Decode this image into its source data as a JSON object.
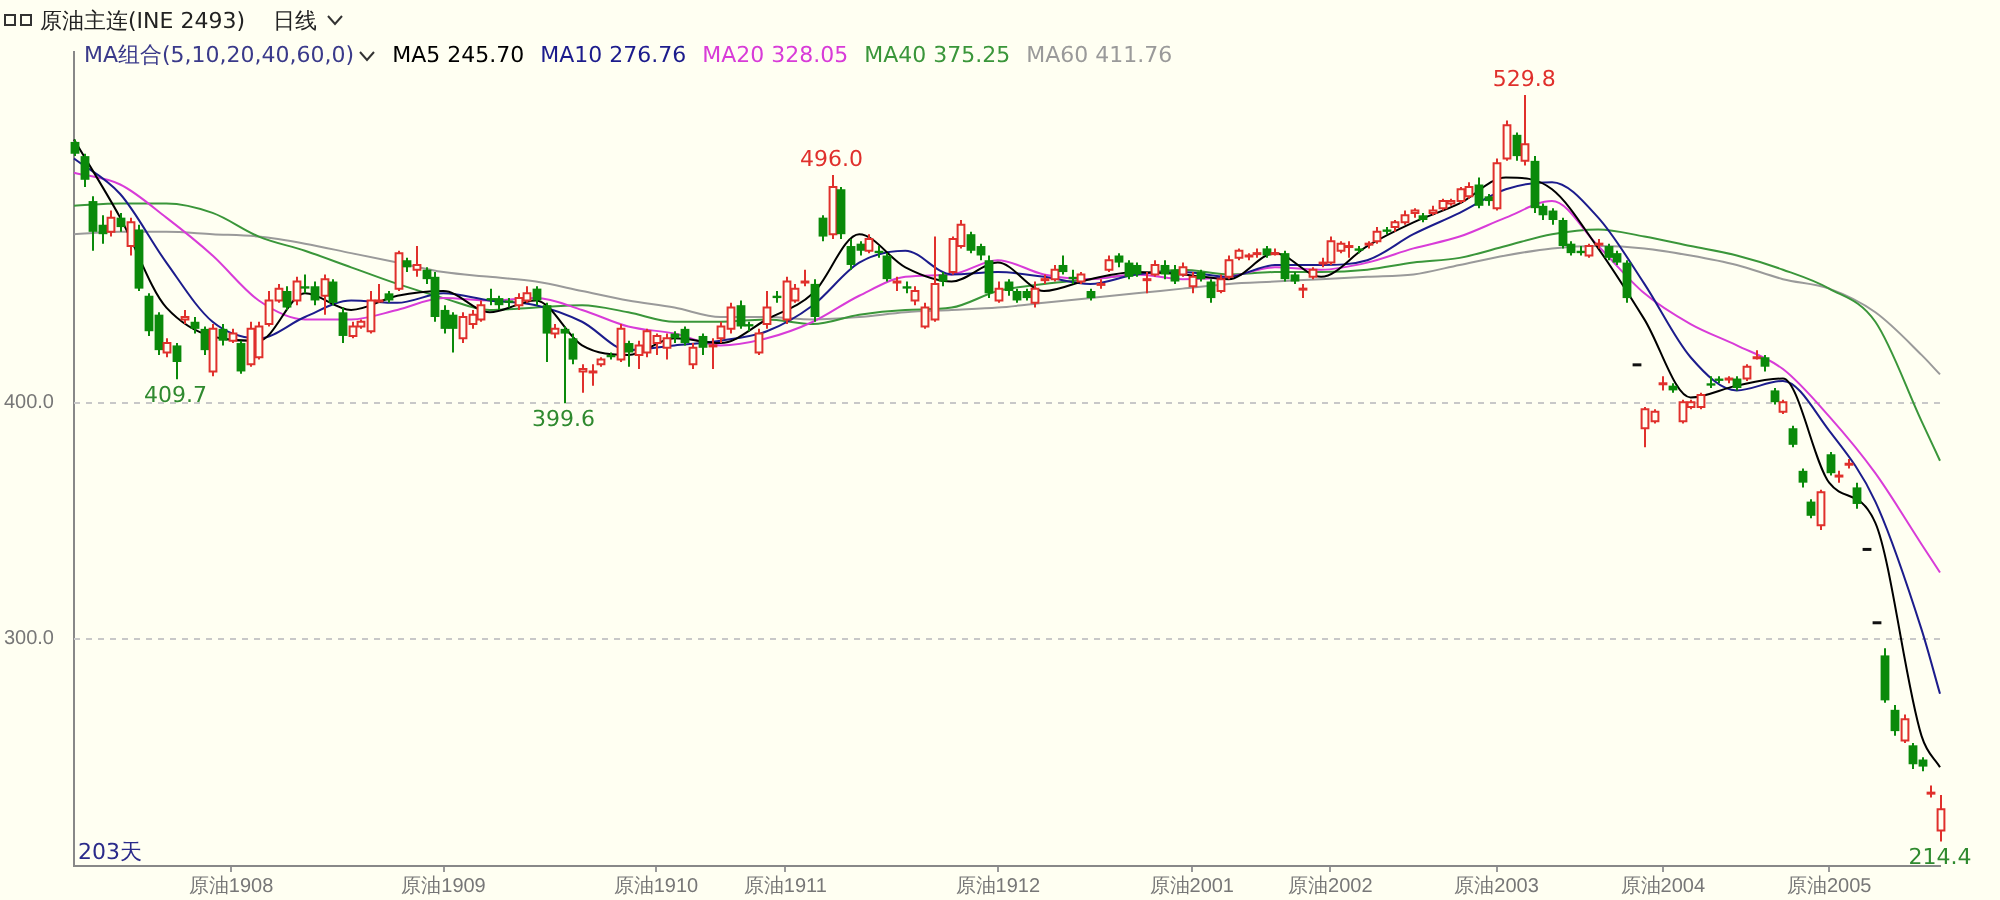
{
  "chart_data": {
    "type": "candlestick",
    "title": "原油主连(INE 2493)",
    "subtitle": "日线",
    "legend_title": "MA组合(5,10,20,40,60,0)",
    "legend": "top left",
    "grid": "y",
    "categories": [
      null,
      null,
      null,
      null,
      null,
      null,
      null,
      null,
      null,
      null,
      null,
      null,
      null,
      null,
      null,
      null,
      null,
      "原油1908",
      null,
      null,
      null,
      null,
      null,
      null,
      null,
      null,
      null,
      null,
      null,
      null,
      null,
      null,
      null,
      null,
      null,
      null,
      null,
      null,
      null,
      null,
      "原油1909",
      null,
      null,
      null,
      null,
      null,
      null,
      null,
      null,
      null,
      null,
      null,
      null,
      null,
      null,
      null,
      null,
      null,
      null,
      null,
      null,
      null,
      null,
      "原油1910",
      null,
      null,
      null,
      null,
      null,
      null,
      null,
      null,
      null,
      null,
      null,
      null,
      null,
      "原油1911",
      null,
      null,
      null,
      null,
      null,
      null,
      null,
      null,
      null,
      null,
      null,
      null,
      null,
      null,
      null,
      null,
      null,
      null,
      null,
      null,
      null,
      null,
      "原油1912",
      null,
      null,
      null,
      null,
      null,
      null,
      null,
      null,
      null,
      null,
      null,
      null,
      null,
      null,
      null,
      null,
      null,
      null,
      null,
      null,
      "原油2001",
      null,
      null,
      null,
      null,
      null,
      null,
      null,
      null,
      null,
      null,
      null,
      null,
      null,
      null,
      "原油2002",
      null,
      null,
      null,
      null,
      null,
      null,
      null,
      null,
      null,
      null,
      null,
      null,
      null,
      null,
      null,
      null,
      null,
      "原油2003",
      null,
      null,
      null,
      null,
      null,
      null,
      null,
      null,
      null,
      null,
      null,
      null,
      null,
      null,
      null,
      null,
      null,
      "原油2004",
      null,
      null,
      null,
      null,
      null,
      null,
      null,
      null,
      null,
      null,
      null,
      null,
      null,
      null,
      null,
      null,
      null,
      "原油2005",
      null,
      null,
      null,
      null,
      null,
      null,
      null,
      null,
      null,
      null,
      null,
      null
    ],
    "ylim": [
      204,
      548
    ],
    "yticks": [
      {
        "value": 300,
        "label": "300.0"
      },
      {
        "value": 400,
        "label": "400.0"
      }
    ],
    "annotations": [
      "203天",
      {
        "text": "409.7",
        "y": 409.7
      },
      {
        "text": "399.6",
        "y": 399.6
      },
      {
        "text": "496.0",
        "y": 496
      },
      {
        "text": "529.8",
        "y": 529.8
      },
      {
        "text": "214.4",
        "y": 214.4
      }
    ],
    "ohlc": [
      [
        510,
        511,
        504,
        505
      ],
      [
        504,
        505,
        491,
        494
      ],
      [
        485,
        487,
        464,
        472
      ],
      [
        475,
        479,
        467,
        471
      ],
      [
        472,
        481,
        470,
        478
      ],
      [
        478,
        480,
        472,
        474
      ],
      [
        466,
        478,
        462,
        476
      ],
      [
        473,
        475,
        447,
        448
      ],
      [
        445,
        446,
        428,
        430
      ],
      [
        437,
        438,
        420,
        422
      ],
      [
        421,
        427,
        419,
        425
      ],
      [
        424,
        425,
        409.7,
        417
      ],
      [
        435,
        439,
        433,
        436
      ],
      [
        434,
        436,
        429,
        431
      ],
      [
        431,
        432,
        420,
        422
      ],
      [
        413,
        433,
        411,
        431
      ],
      [
        431,
        433,
        424,
        426
      ],
      [
        426,
        431,
        425,
        429
      ],
      [
        425,
        426,
        412,
        413
      ],
      [
        416,
        434,
        415,
        431
      ],
      [
        419,
        434,
        418,
        432
      ],
      [
        433,
        447,
        432,
        443
      ],
      [
        443,
        450,
        442,
        448
      ],
      [
        447,
        449,
        439,
        440
      ],
      [
        443,
        453,
        441,
        451
      ],
      [
        449,
        454,
        446,
        448
      ],
      [
        449,
        451,
        441,
        443
      ],
      [
        445,
        454,
        437,
        452
      ],
      [
        451,
        452,
        441,
        442
      ],
      [
        438,
        440,
        425,
        428
      ],
      [
        428,
        434,
        427,
        432
      ],
      [
        432,
        435,
        431,
        434
      ],
      [
        430,
        447,
        429,
        443
      ],
      [
        443,
        450,
        442,
        443
      ],
      [
        446,
        447,
        442,
        443
      ],
      [
        448,
        464,
        447,
        463
      ],
      [
        460,
        461,
        455,
        457
      ],
      [
        456,
        466,
        453,
        458
      ],
      [
        456,
        457,
        450,
        452
      ],
      [
        453,
        455,
        434,
        436
      ],
      [
        439,
        441,
        429,
        431
      ],
      [
        437,
        438,
        421,
        431
      ],
      [
        427,
        438,
        425,
        436
      ],
      [
        433,
        439,
        431,
        437
      ],
      [
        435,
        443,
        434,
        441
      ],
      [
        444,
        448,
        441,
        443
      ],
      [
        444,
        445,
        439,
        441
      ],
      [
        443,
        444,
        440,
        442
      ],
      [
        441,
        446,
        439,
        444
      ],
      [
        443,
        449,
        442,
        446
      ],
      [
        448,
        449,
        441,
        443
      ],
      [
        441,
        442,
        417,
        429
      ],
      [
        429,
        433,
        427,
        431
      ],
      [
        431,
        432,
        399.6,
        429
      ],
      [
        427,
        429,
        416,
        418
      ],
      [
        413,
        416,
        404,
        414
      ],
      [
        413,
        416,
        407,
        413
      ],
      [
        416,
        419,
        415,
        418
      ],
      [
        420,
        421,
        418,
        419
      ],
      [
        418,
        433,
        417,
        431
      ],
      [
        425,
        426,
        415,
        421
      ],
      [
        420,
        426,
        414,
        424
      ],
      [
        421,
        431,
        419,
        430
      ],
      [
        425,
        429,
        420,
        428
      ],
      [
        423,
        429,
        418,
        427
      ],
      [
        429,
        430,
        425,
        427
      ],
      [
        431,
        432,
        424,
        425
      ],
      [
        416,
        425,
        414,
        423
      ],
      [
        428,
        429,
        420,
        423
      ],
      [
        424,
        427,
        414,
        424
      ],
      [
        427,
        434,
        425,
        432
      ],
      [
        431,
        442,
        429,
        440
      ],
      [
        441,
        443,
        431,
        432
      ],
      [
        433,
        434,
        430,
        432
      ],
      [
        421,
        431,
        420,
        429
      ],
      [
        433,
        447,
        431,
        440
      ],
      [
        445,
        447,
        442,
        444
      ],
      [
        435,
        453,
        433,
        451
      ],
      [
        443,
        450,
        442,
        448
      ],
      [
        451,
        456,
        449,
        451
      ],
      [
        450,
        452,
        434,
        436
      ],
      [
        478,
        479,
        468,
        470
      ],
      [
        471,
        496,
        469,
        491
      ],
      [
        490,
        491,
        469,
        471
      ],
      [
        466,
        469,
        456,
        458
      ],
      [
        467,
        468,
        462,
        464
      ],
      [
        464,
        471,
        463,
        469
      ],
      [
        464,
        466,
        461,
        463
      ],
      [
        462,
        463,
        451,
        452
      ],
      [
        451,
        453,
        447,
        451
      ],
      [
        449,
        451,
        446,
        448
      ],
      [
        443,
        449,
        441,
        447
      ],
      [
        432,
        442,
        431,
        440
      ],
      [
        435,
        470,
        434,
        450
      ],
      [
        454,
        455,
        449,
        451
      ],
      [
        455,
        470,
        454,
        469
      ],
      [
        466,
        477,
        465,
        475
      ],
      [
        471,
        472,
        463,
        464
      ],
      [
        466,
        467,
        460,
        462
      ],
      [
        460,
        462,
        444,
        446
      ],
      [
        443,
        451,
        442,
        448
      ],
      [
        451,
        452,
        445,
        447
      ],
      [
        447,
        448,
        442,
        443
      ],
      [
        447,
        448,
        443,
        444
      ],
      [
        442,
        451,
        440,
        448
      ],
      [
        452,
        454,
        450,
        452
      ],
      [
        452,
        458,
        451,
        456
      ],
      [
        458,
        462,
        454,
        455
      ],
      [
        453,
        456,
        450,
        452
      ],
      [
        451,
        455,
        450,
        454
      ],
      [
        447,
        448,
        443,
        444
      ],
      [
        450,
        452,
        448,
        450
      ],
      [
        456,
        462,
        455,
        460
      ],
      [
        462,
        463,
        457,
        459
      ],
      [
        459,
        460,
        452,
        453
      ],
      [
        458,
        459,
        453,
        454
      ],
      [
        452,
        455,
        446,
        452
      ],
      [
        454,
        460,
        453,
        458
      ],
      [
        458,
        460,
        452,
        454
      ],
      [
        456,
        458,
        450,
        451
      ],
      [
        454,
        459,
        453,
        457
      ],
      [
        449,
        455,
        446,
        453
      ],
      [
        455,
        456,
        451,
        452
      ],
      [
        451,
        452,
        442,
        444
      ],
      [
        447,
        454,
        446,
        452
      ],
      [
        453,
        462,
        452,
        460
      ],
      [
        461,
        465,
        460,
        464
      ],
      [
        462,
        463,
        460,
        462
      ],
      [
        463,
        465,
        461,
        463
      ],
      [
        465,
        466,
        461,
        462
      ],
      [
        463,
        465,
        462,
        463
      ],
      [
        463,
        464,
        451,
        452
      ],
      [
        454,
        455,
        450,
        451
      ],
      [
        448,
        450,
        444,
        448
      ],
      [
        453,
        457,
        452,
        456
      ],
      [
        459,
        461,
        457,
        459
      ],
      [
        459,
        470,
        458,
        468
      ],
      [
        464,
        468,
        463,
        467
      ],
      [
        466,
        468,
        461,
        466
      ],
      [
        465,
        466,
        463,
        464
      ],
      [
        467,
        468,
        465,
        467
      ],
      [
        468,
        474,
        467,
        472
      ],
      [
        473,
        474,
        471,
        472
      ],
      [
        474,
        477,
        472,
        476
      ],
      [
        476,
        481,
        475,
        479
      ],
      [
        480,
        482,
        478,
        481
      ],
      [
        479,
        480,
        476,
        477
      ],
      [
        480,
        483,
        479,
        481
      ],
      [
        482,
        486,
        481,
        485
      ],
      [
        484,
        486,
        483,
        485
      ],
      [
        485,
        491,
        484,
        490
      ],
      [
        487,
        493,
        486,
        491
      ],
      [
        492,
        495,
        482,
        483
      ],
      [
        487,
        488,
        483,
        485
      ],
      [
        482,
        503,
        481,
        501
      ],
      [
        503,
        519,
        502,
        517
      ],
      [
        513,
        514,
        502,
        504
      ],
      [
        502,
        529.8,
        500,
        509
      ],
      [
        502,
        504,
        480,
        482
      ],
      [
        483,
        484,
        477,
        479
      ],
      [
        481,
        482,
        475,
        477
      ],
      [
        477,
        478,
        465,
        466
      ],
      [
        467,
        468,
        462,
        463
      ],
      [
        464,
        466,
        462,
        463
      ],
      [
        462,
        467,
        461,
        466
      ],
      [
        467,
        469,
        465,
        467
      ],
      [
        466,
        467,
        460,
        461
      ],
      [
        463,
        464,
        458,
        459
      ],
      [
        459,
        460,
        442,
        444
      ],
      [
        416,
        416,
        416,
        416
      ],
      [
        389,
        398,
        381,
        397
      ],
      [
        392,
        397,
        391,
        396
      ],
      [
        408,
        411,
        405,
        408
      ],
      [
        407,
        408,
        404,
        405
      ],
      [
        392,
        401,
        391,
        400
      ],
      [
        398,
        401,
        397,
        400
      ],
      [
        398,
        404,
        397,
        403
      ],
      [
        408,
        411,
        406,
        407
      ],
      [
        410,
        411,
        408,
        409
      ],
      [
        410,
        411,
        408,
        410
      ],
      [
        410,
        411,
        405,
        406
      ],
      [
        410,
        416,
        409,
        415
      ],
      [
        419,
        422,
        418,
        419
      ],
      [
        419,
        420,
        413,
        415
      ],
      [
        405,
        406,
        399,
        400
      ],
      [
        396,
        401,
        395,
        400
      ],
      [
        389,
        390,
        381,
        382
      ],
      [
        371,
        372,
        364,
        366
      ],
      [
        358,
        359,
        351,
        352
      ],
      [
        348,
        363,
        346,
        362
      ],
      [
        378,
        379,
        369,
        370
      ],
      [
        369,
        371,
        366,
        369
      ],
      [
        374,
        376,
        372,
        374
      ],
      [
        364,
        366,
        355,
        357
      ],
      [
        338,
        338,
        338,
        338
      ],
      [
        307,
        307,
        307,
        307
      ],
      [
        293,
        296,
        273,
        274
      ],
      [
        270,
        272,
        259,
        261
      ],
      [
        257,
        268,
        256,
        266
      ],
      [
        255,
        256,
        245,
        247
      ],
      [
        249,
        250,
        244,
        246
      ],
      [
        235,
        238,
        233,
        235
      ],
      [
        219,
        234,
        214.4,
        228
      ]
    ],
    "series": [
      {
        "name": "MA5 245.70",
        "type": "line",
        "color": "#000000",
        "values": [
          511,
          null,
          null,
          null,
          null,
          478,
          null,
          null,
          null,
          null,
          440,
          null,
          null,
          null,
          null,
          null,
          null,
          null,
          null,
          null,
          426,
          null,
          null,
          null,
          null,
          446,
          null,
          null,
          null,
          null,
          439,
          null,
          null,
          null,
          null,
          445,
          null,
          null,
          null,
          null,
          447,
          null,
          null,
          null,
          null,
          438,
          null,
          null,
          null,
          null,
          443,
          null,
          null,
          null,
          null,
          424,
          null,
          null,
          null,
          null,
          420,
          null,
          null,
          null,
          null,
          427,
          null,
          null,
          null,
          null,
          425,
          null,
          null,
          null,
          null,
          435,
          null,
          null,
          null,
          null,
          446,
          null,
          null,
          null,
          null,
          471,
          null,
          null,
          null,
          null,
          457,
          null,
          null,
          null,
          null,
          451,
          null,
          null,
          null,
          null,
          459,
          null,
          null,
          null,
          null,
          447,
          null,
          null,
          null,
          null,
          452,
          null,
          null,
          null,
          null,
          455,
          null,
          null,
          null,
          null,
          454,
          null,
          null,
          null,
          null,
          452,
          null,
          null,
          null,
          null,
          463,
          null,
          null,
          null,
          null,
          453,
          null,
          null,
          null,
          null,
          466,
          null,
          null,
          null,
          null,
          476,
          null,
          null,
          null,
          null,
          484,
          null,
          null,
          null,
          null,
          495,
          null,
          null,
          null,
          null,
          490,
          null,
          null,
          null,
          null,
          465,
          null,
          null,
          null,
          null,
          435,
          null,
          null,
          null,
          null,
          402,
          null,
          null,
          null,
          null,
          407,
          null,
          null,
          null,
          null,
          410,
          null,
          null,
          null,
          null,
          366,
          null,
          null,
          null,
          null,
          349,
          null,
          null,
          null,
          null,
          259,
          null,
          245.7
        ]
      },
      {
        "name": "MA10 276.76",
        "type": "line",
        "color": "#1c1c8c",
        "values": [
          503,
          null,
          null,
          null,
          null,
          488,
          null,
          null,
          null,
          null,
          459,
          null,
          null,
          null,
          null,
          434,
          null,
          null,
          null,
          null,
          427,
          null,
          null,
          null,
          null,
          436,
          null,
          null,
          null,
          null,
          443,
          null,
          null,
          null,
          null,
          442,
          null,
          null,
          null,
          null,
          446,
          null,
          null,
          null,
          null,
          443,
          null,
          null,
          null,
          null,
          441,
          null,
          null,
          null,
          null,
          434,
          null,
          null,
          null,
          null,
          422,
          null,
          null,
          null,
          null,
          424,
          null,
          null,
          null,
          null,
          426,
          null,
          null,
          null,
          null,
          430,
          null,
          null,
          null,
          null,
          441,
          null,
          null,
          null,
          null,
          459,
          null,
          null,
          null,
          null,
          464,
          null,
          null,
          null,
          null,
          454,
          null,
          null,
          null,
          null,
          455,
          null,
          null,
          null,
          null,
          453,
          null,
          null,
          null,
          null,
          450,
          null,
          null,
          null,
          null,
          454,
          null,
          null,
          null,
          null,
          455,
          null,
          null,
          null,
          null,
          453,
          null,
          null,
          null,
          null,
          458,
          null,
          null,
          null,
          null,
          458,
          null,
          null,
          null,
          null,
          460,
          null,
          null,
          null,
          null,
          471,
          null,
          null,
          null,
          null,
          480,
          null,
          null,
          null,
          null,
          490,
          null,
          null,
          null,
          null,
          493,
          null,
          null,
          null,
          null,
          478,
          null,
          null,
          null,
          null,
          450,
          null,
          null,
          null,
          null,
          419,
          null,
          null,
          null,
          null,
          405,
          null,
          null,
          null,
          null,
          409,
          null,
          null,
          null,
          null,
          388,
          null,
          null,
          null,
          null,
          358,
          null,
          null,
          null,
          null,
          304,
          null,
          276.76
        ]
      },
      {
        "name": "MA20 328.05",
        "type": "line",
        "color": "#d83cd8",
        "values": [
          497,
          null,
          null,
          null,
          null,
          492,
          null,
          null,
          null,
          null,
          478,
          null,
          null,
          null,
          null,
          462,
          null,
          null,
          null,
          null,
          443,
          null,
          null,
          null,
          null,
          435,
          null,
          null,
          null,
          null,
          435,
          null,
          null,
          null,
          null,
          439,
          null,
          null,
          null,
          null,
          444,
          null,
          null,
          null,
          null,
          443,
          null,
          null,
          null,
          null,
          444,
          null,
          null,
          null,
          null,
          439,
          null,
          null,
          null,
          null,
          432,
          null,
          null,
          null,
          null,
          429,
          null,
          null,
          null,
          null,
          424,
          null,
          null,
          null,
          null,
          427,
          null,
          null,
          null,
          null,
          434,
          null,
          null,
          null,
          null,
          445,
          null,
          null,
          null,
          null,
          453,
          null,
          null,
          null,
          null,
          454,
          null,
          null,
          null,
          null,
          460,
          null,
          null,
          null,
          null,
          454,
          null,
          null,
          null,
          null,
          452,
          null,
          null,
          null,
          null,
          454,
          null,
          null,
          null,
          null,
          452,
          null,
          null,
          null,
          null,
          453,
          null,
          null,
          null,
          null,
          457,
          null,
          null,
          null,
          null,
          456,
          null,
          null,
          null,
          null,
          459,
          null,
          null,
          null,
          null,
          465,
          null,
          null,
          null,
          null,
          470,
          null,
          null,
          null,
          null,
          478,
          null,
          null,
          null,
          null,
          485,
          null,
          null,
          null,
          null,
          466,
          null,
          null,
          null,
          null,
          446,
          null,
          null,
          null,
          null,
          433,
          null,
          null,
          null,
          null,
          424,
          null,
          null,
          null,
          null,
          414,
          null,
          null,
          null,
          null,
          394,
          null,
          null,
          null,
          null,
          370,
          null,
          null,
          null,
          null,
          340,
          null,
          328.05
        ]
      },
      {
        "name": "MA40 375.25",
        "type": "line",
        "color": "#3a963a",
        "values": [
          483,
          null,
          null,
          null,
          null,
          484,
          null,
          null,
          null,
          null,
          484,
          null,
          null,
          null,
          null,
          480,
          null,
          null,
          null,
          null,
          470,
          null,
          null,
          null,
          null,
          464,
          null,
          null,
          null,
          null,
          457,
          null,
          null,
          null,
          null,
          450,
          null,
          null,
          null,
          null,
          444,
          null,
          null,
          null,
          null,
          439,
          null,
          null,
          null,
          null,
          440,
          null,
          null,
          null,
          null,
          441,
          null,
          null,
          null,
          null,
          438,
          null,
          null,
          null,
          null,
          434,
          null,
          null,
          null,
          null,
          434,
          null,
          null,
          null,
          null,
          435,
          null,
          null,
          null,
          null,
          433,
          null,
          null,
          null,
          null,
          437,
          null,
          null,
          null,
          null,
          439,
          null,
          null,
          null,
          null,
          440,
          null,
          null,
          null,
          null,
          447,
          null,
          null,
          null,
          null,
          450,
          null,
          null,
          null,
          null,
          452,
          null,
          null,
          null,
          null,
          454,
          null,
          null,
          null,
          null,
          456,
          null,
          null,
          null,
          null,
          454,
          null,
          null,
          null,
          null,
          455,
          null,
          null,
          null,
          null,
          455,
          null,
          null,
          null,
          null,
          456,
          null,
          null,
          null,
          null,
          459,
          null,
          null,
          null,
          null,
          461,
          null,
          null,
          null,
          null,
          466,
          null,
          null,
          null,
          null,
          471,
          null,
          null,
          null,
          null,
          473,
          null,
          null,
          null,
          null,
          470,
          null,
          null,
          null,
          null,
          466,
          null,
          null,
          null,
          null,
          462,
          null,
          null,
          null,
          null,
          456,
          null,
          null,
          null,
          null,
          448,
          null,
          null,
          null,
          null,
          434,
          null,
          null,
          null,
          null,
          392,
          null,
          375.25
        ]
      },
      {
        "name": "MA60 411.76",
        "type": "line",
        "color": "#9a9a9a",
        "values": [
          471,
          null,
          null,
          null,
          null,
          472,
          null,
          null,
          null,
          null,
          472,
          null,
          null,
          null,
          null,
          471,
          null,
          null,
          null,
          null,
          470,
          null,
          null,
          null,
          null,
          467,
          null,
          null,
          null,
          null,
          463,
          null,
          null,
          null,
          null,
          459,
          null,
          null,
          null,
          null,
          455,
          null,
          null,
          null,
          null,
          453,
          null,
          null,
          null,
          null,
          451,
          null,
          null,
          null,
          null,
          447,
          null,
          null,
          null,
          null,
          443,
          null,
          null,
          null,
          null,
          440,
          null,
          null,
          null,
          null,
          436,
          null,
          null,
          null,
          null,
          436,
          null,
          null,
          null,
          null,
          435,
          null,
          null,
          null,
          null,
          436,
          null,
          null,
          null,
          null,
          438,
          null,
          null,
          null,
          null,
          439,
          null,
          null,
          null,
          null,
          440,
          null,
          null,
          null,
          null,
          442,
          null,
          null,
          null,
          null,
          444,
          null,
          null,
          null,
          null,
          446,
          null,
          null,
          null,
          null,
          448,
          null,
          null,
          null,
          null,
          450,
          null,
          null,
          null,
          null,
          451,
          null,
          null,
          null,
          null,
          452,
          null,
          null,
          null,
          null,
          453,
          null,
          null,
          null,
          null,
          454,
          null,
          null,
          null,
          null,
          458,
          null,
          null,
          null,
          null,
          462,
          null,
          null,
          null,
          null,
          465,
          null,
          null,
          null,
          null,
          466,
          null,
          null,
          null,
          null,
          465,
          null,
          null,
          null,
          null,
          462,
          null,
          null,
          null,
          null,
          458,
          null,
          null,
          null,
          null,
          452,
          null,
          null,
          null,
          null,
          448,
          null,
          null,
          null,
          null,
          438,
          null,
          null,
          null,
          null,
          420,
          null,
          411.76
        ]
      }
    ]
  }
}
